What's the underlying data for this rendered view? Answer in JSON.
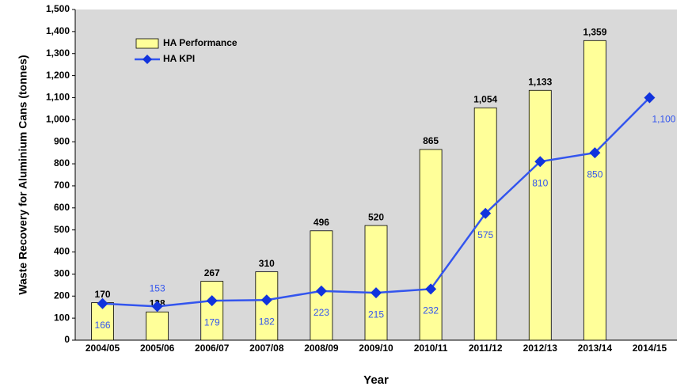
{
  "chart_data": {
    "type": "bar-line",
    "x_label": "Year",
    "y_label": "Waste Recovery for Aluminium Cans (tonnes)",
    "categories": [
      "2004/05",
      "2005/06",
      "2006/07",
      "2007/08",
      "2008/09",
      "2009/10",
      "2010/11",
      "2011/12",
      "2012/13",
      "2013/14",
      "2014/15"
    ],
    "series": [
      {
        "name": "HA Performance",
        "type": "bar",
        "color": "#ffff99",
        "values": [
          170,
          128,
          267,
          310,
          496,
          520,
          865,
          1054,
          1133,
          1359,
          null
        ],
        "value_labels": [
          "170",
          "128",
          "267",
          "310",
          "496",
          "520",
          "865",
          "1,054",
          "1,133",
          "1,359",
          null
        ]
      },
      {
        "name": "HA KPI",
        "type": "line",
        "color": "#3355ee",
        "values": [
          166,
          153,
          179,
          182,
          223,
          215,
          232,
          575,
          810,
          850,
          1100
        ],
        "value_labels": [
          "166",
          "153",
          "179",
          "182",
          "223",
          "215",
          "232",
          "575",
          "810",
          "850",
          "1,100"
        ]
      }
    ],
    "ylim": [
      0,
      1500
    ],
    "yticks": [
      0,
      100,
      200,
      300,
      400,
      500,
      600,
      700,
      800,
      900,
      {
        "value": 1000,
        "label": "1,000"
      },
      {
        "value": 1100,
        "label": "1,100"
      },
      {
        "value": 1200,
        "label": "1,200"
      },
      {
        "value": 1300,
        "label": "1,300"
      },
      {
        "value": 1400,
        "label": "1,400"
      },
      {
        "value": 1500,
        "label": "1,500"
      }
    ],
    "grid": false,
    "legend": "upper left"
  }
}
